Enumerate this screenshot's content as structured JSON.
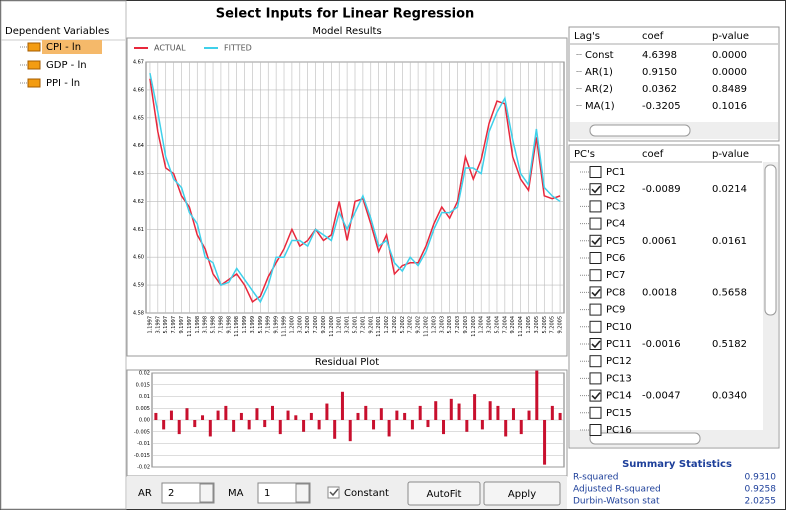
{
  "window_title": "Select Inputs for Linear Regression",
  "dependent_variables": {
    "header": "Dependent Variables",
    "items": [
      "CPI - ln",
      "GDP - ln",
      "PPI - ln"
    ]
  },
  "chart_data": [
    {
      "type": "line",
      "title": "Model Results",
      "categories": [
        "1.1997",
        "3.1997",
        "5.1997",
        "7.1997",
        "9.1997",
        "11.1997",
        "1.1998",
        "3.1998",
        "5.1998",
        "7.1998",
        "9.1998",
        "11.1998",
        "1.1999",
        "3.1999",
        "5.1999",
        "7.1999",
        "9.1999",
        "11.1999",
        "1.2000",
        "3.2000",
        "5.2000",
        "7.2000",
        "9.2000",
        "11.2000",
        "1.2001",
        "3.2001",
        "5.2001",
        "7.2001",
        "9.2001",
        "11.2001",
        "1.2002",
        "3.2002",
        "5.2002",
        "7.2002",
        "9.2002",
        "11.2002",
        "1.2003",
        "3.2003",
        "5.2003",
        "7.2003",
        "9.2003",
        "11.2003",
        "1.2004",
        "3.2004",
        "5.2004",
        "7.2004",
        "9.2004",
        "11.2004",
        "1.2005",
        "3.2005",
        "5.2005",
        "7.2005",
        "9.2005"
      ],
      "series": [
        {
          "name": "ACTUAL",
          "color": "#e8283c",
          "values": [
            4.664,
            4.645,
            4.632,
            4.63,
            4.622,
            4.618,
            4.608,
            4.603,
            4.594,
            4.59,
            4.592,
            4.594,
            4.59,
            4.584,
            4.586,
            4.593,
            4.598,
            4.603,
            4.61,
            4.604,
            4.606,
            4.61,
            4.606,
            4.608,
            4.62,
            4.606,
            4.62,
            4.621,
            4.612,
            4.602,
            4.608,
            4.594,
            4.597,
            4.598,
            4.598,
            4.604,
            4.612,
            4.618,
            4.614,
            4.62,
            4.636,
            4.628,
            4.635,
            4.648,
            4.656,
            4.655,
            4.636,
            4.628,
            4.624,
            4.643,
            4.622,
            4.621,
            4.622
          ]
        },
        {
          "name": "FITTED",
          "color": "#3fd0ea",
          "values": [
            4.666,
            4.652,
            4.636,
            4.628,
            4.625,
            4.616,
            4.612,
            4.6,
            4.598,
            4.59,
            4.591,
            4.596,
            4.592,
            4.588,
            4.584,
            4.59,
            4.6,
            4.6,
            4.606,
            4.606,
            4.604,
            4.61,
            4.608,
            4.606,
            4.616,
            4.61,
            4.616,
            4.622,
            4.614,
            4.604,
            4.606,
            4.598,
            4.595,
            4.6,
            4.597,
            4.602,
            4.61,
            4.616,
            4.616,
            4.618,
            4.632,
            4.632,
            4.63,
            4.645,
            4.652,
            4.657,
            4.642,
            4.63,
            4.626,
            4.646,
            4.625,
            4.622,
            4.62
          ]
        }
      ],
      "ylim": [
        4.58,
        4.67
      ],
      "yticks": [
        4.58,
        4.59,
        {
          "value": 4.6,
          "label": "4.60"
        },
        4.61,
        4.62,
        4.63,
        4.64,
        4.65,
        4.66,
        4.67
      ],
      "grid": true,
      "legend": "top-left"
    },
    {
      "type": "bar",
      "title": "Residual Plot",
      "color": "#c8102e",
      "values": [
        0.003,
        -0.004,
        0.004,
        -0.006,
        0.005,
        -0.003,
        0.002,
        -0.007,
        0.004,
        0.006,
        -0.005,
        0.003,
        -0.004,
        0.005,
        -0.003,
        0.006,
        -0.006,
        0.004,
        0.002,
        -0.005,
        0.003,
        -0.004,
        0.007,
        -0.008,
        0.012,
        -0.009,
        0.003,
        0.006,
        -0.004,
        0.005,
        -0.007,
        0.004,
        0.003,
        -0.004,
        0.006,
        -0.003,
        0.008,
        -0.006,
        0.009,
        0.007,
        -0.005,
        0.011,
        -0.004,
        0.008,
        0.006,
        -0.007,
        0.005,
        -0.006,
        0.004,
        0.021,
        -0.019,
        0.006,
        0.003
      ],
      "ylim": [
        -0.02,
        0.02
      ],
      "yticks": [
        -0.02,
        -0.015,
        -0.01,
        -0.005,
        {
          "value": 0,
          "label": "0.00"
        },
        0.005,
        0.01,
        0.015,
        0.02
      ],
      "grid": true
    }
  ],
  "lags_table": {
    "headers": [
      "Lag's",
      "coef",
      "p-value"
    ],
    "rows": [
      [
        "Const",
        "4.6398",
        "0.0000"
      ],
      [
        "AR(1)",
        "0.9150",
        "0.0000"
      ],
      [
        "AR(2)",
        "0.0362",
        "0.8489"
      ],
      [
        "MA(1)",
        "-0.3205",
        "0.1016"
      ]
    ]
  },
  "pcs_table": {
    "headers": [
      "PC's",
      "coef",
      "p-value"
    ],
    "rows": [
      {
        "label": "PC1",
        "checked": false
      },
      {
        "label": "PC2",
        "checked": true,
        "coef": "-0.0089",
        "p_value": "0.0214"
      },
      {
        "label": "PC3",
        "checked": false
      },
      {
        "label": "PC4",
        "checked": false
      },
      {
        "label": "PC5",
        "checked": true,
        "coef": "0.0061",
        "p_value": "0.0161"
      },
      {
        "label": "PC6",
        "checked": false
      },
      {
        "label": "PC7",
        "checked": false
      },
      {
        "label": "PC8",
        "checked": true,
        "coef": "0.0018",
        "p_value": "0.5658"
      },
      {
        "label": "PC9",
        "checked": false
      },
      {
        "label": "PC10",
        "checked": false
      },
      {
        "label": "PC11",
        "checked": true,
        "coef": "-0.0016",
        "p_value": "0.5182"
      },
      {
        "label": "PC12",
        "checked": false
      },
      {
        "label": "PC13",
        "checked": false
      },
      {
        "label": "PC14",
        "checked": true,
        "coef": "-0.0047",
        "p_value": "0.0340"
      },
      {
        "label": "PC15",
        "checked": false
      },
      {
        "label": "PC16",
        "checked": false
      }
    ]
  },
  "summary": {
    "title": "Summary Statistics",
    "rows": [
      [
        "R-squared",
        "0.9310"
      ],
      [
        "Adjusted R-squared",
        "0.9258"
      ],
      [
        "Durbin-Watson stat",
        "2.0255"
      ]
    ]
  },
  "controls": {
    "ar_label": "AR",
    "ar_value": "2",
    "ma_label": "MA",
    "ma_value": "1",
    "constant_label": "Constant",
    "constant_checked": true,
    "autofit": "AutoFit",
    "apply": "Apply"
  }
}
